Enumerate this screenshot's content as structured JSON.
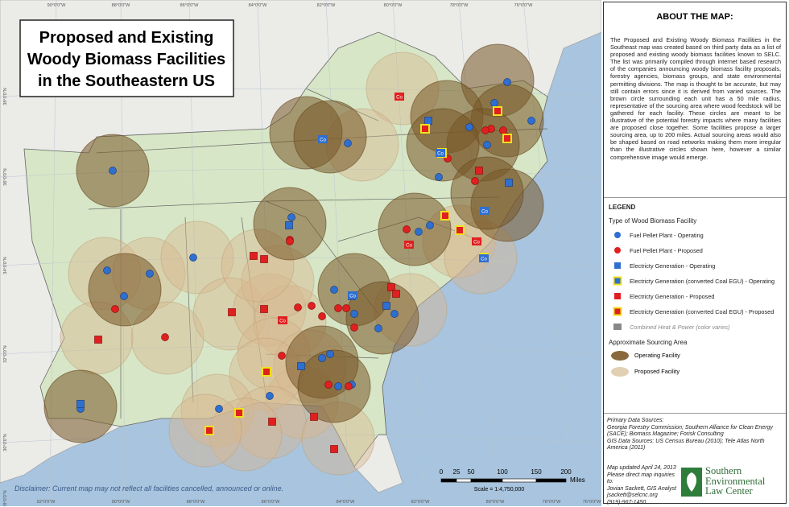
{
  "map": {
    "title_lines": [
      "Proposed and Existing",
      "Woody Biomass Facilities",
      "in the Southeastern US"
    ],
    "disclaimer": "Disclaimer: Current map may not reflect all facilities cancelled, announced or online.",
    "chp_marker_label": "Co",
    "scale_labels": [
      "0",
      "25",
      "50",
      "100",
      "150",
      "200"
    ],
    "scale_unit": "Miles",
    "scale_ratio": "Scale = 1:4,750,000",
    "top_longitudes": [
      "90°0'0\"W",
      "88°0'0\"W",
      "86°0'0\"W",
      "84°0'0\"W",
      "82°0'0\"W",
      "80°0'0\"W",
      "78°0'0\"W",
      "76°0'0\"W"
    ],
    "bottom_longitudes": [
      "92°0'0\"W",
      "90°0'0\"W",
      "88°0'0\"W",
      "86°0'0\"W",
      "84°0'0\"W",
      "82°0'0\"W",
      "80°0'0\"W",
      "78°0'0\"W",
      "76°0'0\"W"
    ],
    "latitudes": [
      "38°0'0\"N",
      "36°0'0\"N",
      "34°0'0\"N",
      "32°0'0\"N",
      "30°0'0\"N",
      "28°0'0\"N"
    ]
  },
  "sidebar": {
    "heading": "ABOUT THE MAP:",
    "about": "The Proposed and Existing Woody Biomass Facilities in the Southeast map was created based on third party data as a list of proposed and existing woody biomass facilities known to SELC. The list was primarily compiled through internet based research of the companies announcing woody biomass facility proposals, forestry agencies, biomass groups, and state environmental permitting divisions. The map is thought to be accurate, but may still contain errors since it is derived from varied sources. The brown circle surrounding each unit has a 50 mile radius, representative of the sourcing area where wood feedstock will be gathered for each facility. These circles are meant to be illustrative of the potential forestry impacts where many facilities are proposed close together. Some facilities propose a larger sourcing area, up to 200 miles. Actual sourcing areas would also be shaped based on road networks making them more irregular than the illustrative circles shown here, however a similar comprehensive image would emerge.",
    "legend_title": "LEGEND",
    "facility_type_title": "Type of Wood Biomass  Facility",
    "facility_types": [
      "Fuel Pellet Plant - Operating",
      "Fuel Pellet Plant - Proposed",
      "Electricty Generation - Operating",
      "Electricty Generation (converted Coal EGU) - Operating",
      "Electricty Generation - Proposed",
      "Electricty Generation (converted Coal EGU) - Proposed",
      "Combined Heat & Power (color varies)"
    ],
    "sourcing_title": "Approximate Sourcing Area",
    "sourcing_types": [
      "Operating Facility",
      "Proposed Facility"
    ],
    "sources_lines": [
      "Primary Data Sources:",
      "Georgia Forestry Commission; Southern Alliance for Clean Energy (SACE); Biomass Magazine; Forisk Consulting",
      "GIS Data Sources: US Census Bureau (2010); Tele Atlas North America (2011)"
    ],
    "updated_lines": [
      "Map updated April 24, 2013",
      "Please direct map inquiries to:",
      "Jovian Sackett, GIS Analyst",
      "jsackett@selcnc.org",
      "(919)-967-1450"
    ],
    "logo_lines": [
      "Southern",
      "Environmental",
      "Law Center"
    ]
  }
}
